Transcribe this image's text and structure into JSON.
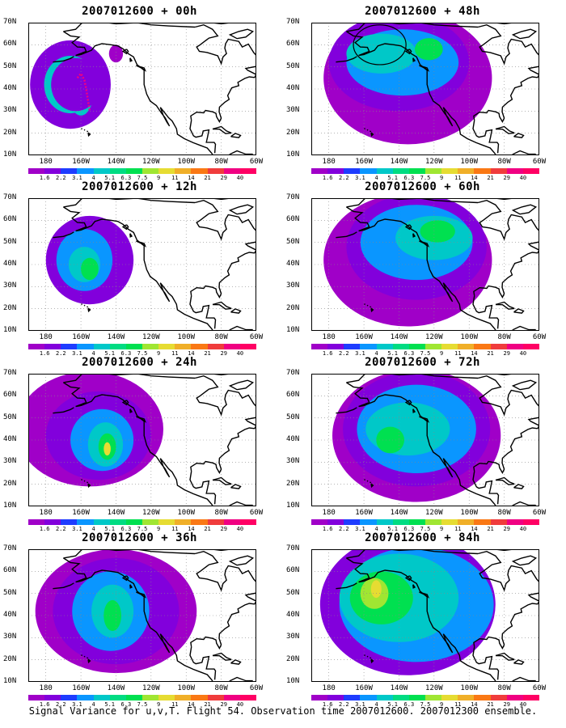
{
  "footer": "Signal Variance for u,v,T. Flight 54. Observation time 2007012600. 2007012300 ensemble.",
  "y_ticks": [
    "70N",
    "60N",
    "50N",
    "40N",
    "30N",
    "20N",
    "10N"
  ],
  "x_ticks": [
    "180",
    "160W",
    "140W",
    "120W",
    "100W",
    "80W",
    "60W"
  ],
  "colorbar": {
    "labels": [
      "1.6",
      "2.2",
      "3.1",
      "4",
      "5.1",
      "6.3",
      "7.5",
      "9",
      "11",
      "14",
      "21",
      "29",
      "40"
    ],
    "colors": [
      "#a000c8",
      "#8200dc",
      "#1e3cff",
      "#0a96ff",
      "#00c8c8",
      "#00dc82",
      "#00e050",
      "#a0e632",
      "#e6dc32",
      "#f0af28",
      "#fa7814",
      "#f03c3c",
      "#f00082"
    ]
  },
  "panels": [
    {
      "title": "2007012600 + 00h",
      "col": 0,
      "row": 0,
      "blobs": [
        [
          0,
          0,
          23,
          20,
          "#8200dc"
        ],
        [
          0,
          0,
          15,
          13,
          "#00c8c8"
        ],
        [
          0,
          0,
          8,
          7,
          "#00e050"
        ],
        [
          0,
          0,
          7,
          10,
          "#00c8c8"
        ],
        [
          0,
          0,
          14,
          12,
          "#8200dc"
        ],
        [
          0,
          0,
          4,
          4,
          "#a000c8"
        ]
      ]
    },
    {
      "title": "2007012600 + 48h",
      "col": 1,
      "row": 0,
      "circle": true,
      "blobs": [
        [
          0,
          0,
          48,
          30,
          "#a000c8"
        ],
        [
          0,
          0,
          40,
          22,
          "#8200dc"
        ],
        [
          0,
          0,
          32,
          15,
          "#0a96ff"
        ],
        [
          0,
          0,
          20,
          9,
          "#00c8c8"
        ],
        [
          0,
          0,
          8,
          5,
          "#00e050"
        ]
      ]
    },
    {
      "title": "2007012600 + 12h",
      "col": 0,
      "row": 1,
      "blobs": [
        [
          0,
          0,
          25,
          20,
          "#8200dc"
        ],
        [
          0,
          0,
          16,
          14,
          "#0a96ff"
        ],
        [
          0,
          0,
          9,
          8,
          "#00c8c8"
        ],
        [
          0,
          0,
          5,
          5,
          "#00e050"
        ]
      ]
    },
    {
      "title": "2007012600 + 60h",
      "col": 1,
      "row": 1,
      "blobs": [
        [
          0,
          0,
          48,
          30,
          "#a000c8"
        ],
        [
          0,
          0,
          40,
          24,
          "#8200dc"
        ],
        [
          0,
          0,
          32,
          17,
          "#0a96ff"
        ],
        [
          0,
          0,
          22,
          10,
          "#00c8c8"
        ],
        [
          0,
          0,
          10,
          5,
          "#00e050"
        ]
      ]
    },
    {
      "title": "2007012600 + 24h",
      "col": 0,
      "row": 2,
      "blobs": [
        [
          0,
          0,
          42,
          26,
          "#a000c8"
        ],
        [
          0,
          0,
          30,
          20,
          "#8200dc"
        ],
        [
          0,
          0,
          18,
          14,
          "#0a96ff"
        ],
        [
          0,
          0,
          10,
          10,
          "#00c8c8"
        ],
        [
          0,
          0,
          5,
          6,
          "#00e050"
        ],
        [
          0,
          0,
          2,
          3,
          "#e6dc32"
        ]
      ]
    },
    {
      "title": "2007012600 + 72h",
      "col": 1,
      "row": 2,
      "blobs": [
        [
          0,
          0,
          48,
          30,
          "#a000c8"
        ],
        [
          0,
          0,
          42,
          26,
          "#8200dc"
        ],
        [
          0,
          0,
          34,
          20,
          "#0a96ff"
        ],
        [
          0,
          0,
          24,
          12,
          "#00c8c8"
        ],
        [
          0,
          0,
          8,
          6,
          "#00e050"
        ]
      ]
    },
    {
      "title": "2007012600 + 36h",
      "col": 0,
      "row": 3,
      "blobs": [
        [
          0,
          0,
          46,
          28,
          "#a000c8"
        ],
        [
          0,
          0,
          36,
          24,
          "#8200dc"
        ],
        [
          0,
          0,
          22,
          18,
          "#0a96ff"
        ],
        [
          0,
          0,
          12,
          12,
          "#00c8c8"
        ],
        [
          0,
          0,
          5,
          7,
          "#00e050"
        ]
      ]
    },
    {
      "title": "2007012600 + 84h",
      "col": 1,
      "row": 3,
      "blobs": [
        [
          0,
          0,
          50,
          32,
          "#8200dc"
        ],
        [
          0,
          0,
          44,
          26,
          "#0a96ff"
        ],
        [
          0,
          0,
          34,
          20,
          "#00c8c8"
        ],
        [
          0,
          0,
          18,
          12,
          "#00e050"
        ],
        [
          0,
          0,
          8,
          7,
          "#a0e632"
        ],
        [
          0,
          0,
          3,
          4,
          "#e6dc32"
        ]
      ]
    }
  ]
}
